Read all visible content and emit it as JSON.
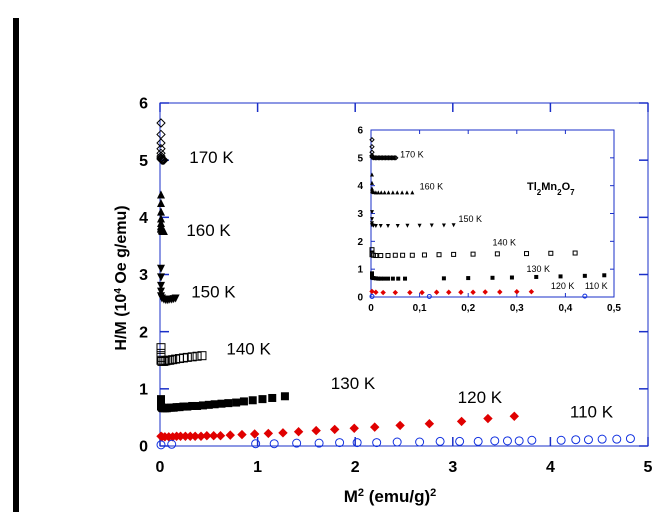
{
  "chart_data": {
    "type": "scatter",
    "main": {
      "xlabel_base": "M",
      "xlabel_sup": "2",
      "xlabel_rest": " (emu/g)",
      "xlabel_sup2": "2",
      "ylabel_a": "H/M (10",
      "ylabel_sup": "4",
      "ylabel_b": " Oe g/emu)",
      "xlim": [
        0,
        5
      ],
      "ylim": [
        0,
        6
      ],
      "xticks": [
        "0",
        "1",
        "2",
        "3",
        "4",
        "5"
      ],
      "yticks": [
        "0",
        "1",
        "2",
        "3",
        "4",
        "5",
        "6"
      ],
      "annotations": [
        {
          "text": "170 K",
          "x": 0.3,
          "y": 4.95
        },
        {
          "text": "160 K",
          "x": 0.27,
          "y": 3.67
        },
        {
          "text": "150 K",
          "x": 0.32,
          "y": 2.6
        },
        {
          "text": "140 K",
          "x": 0.68,
          "y": 1.6
        },
        {
          "text": "130 K",
          "x": 1.75,
          "y": 1.0
        },
        {
          "text": "120 K",
          "x": 3.05,
          "y": 0.75
        },
        {
          "text": "110 K",
          "x": 4.2,
          "y": 0.5
        }
      ],
      "series": [
        {
          "temp": "170 K",
          "marker": "diamond-open",
          "color": "#000000",
          "x": [
            0.0,
            0.0,
            0.0,
            0.0,
            0.0,
            0.01,
            0.01,
            0.01,
            0.02,
            0.02,
            0.03,
            0.03,
            0.04
          ],
          "y": [
            5.65,
            5.45,
            5.3,
            5.2,
            5.12,
            5.07,
            5.04,
            5.02,
            5.01,
            5.0,
            5.0,
            5.0,
            5.0
          ]
        },
        {
          "temp": "160 K",
          "marker": "triangle-up",
          "color": "#000000",
          "x": [
            0.0,
            0.0,
            0.0,
            0.0,
            0.0,
            0.01,
            0.01,
            0.01,
            0.02,
            0.02,
            0.03,
            0.04
          ],
          "y": [
            4.4,
            4.25,
            4.1,
            3.98,
            3.9,
            3.85,
            3.82,
            3.8,
            3.78,
            3.77,
            3.76,
            3.76
          ]
        },
        {
          "temp": "150 K",
          "marker": "triangle-down",
          "color": "#000000",
          "x": [
            0.0,
            0.0,
            0.0,
            0.0,
            0.01,
            0.02,
            0.04,
            0.06,
            0.08,
            0.1,
            0.12,
            0.14,
            0.16
          ],
          "y": [
            3.1,
            2.95,
            2.8,
            2.7,
            2.62,
            2.58,
            2.56,
            2.55,
            2.55,
            2.56,
            2.56,
            2.57,
            2.58
          ]
        },
        {
          "temp": "140 K",
          "marker": "square-open",
          "color": "#000000",
          "x": [
            0.0,
            0.0,
            0.0,
            0.01,
            0.02,
            0.04,
            0.06,
            0.08,
            0.1,
            0.13,
            0.16,
            0.2,
            0.24,
            0.28,
            0.33,
            0.38,
            0.43
          ],
          "y": [
            1.72,
            1.62,
            1.55,
            1.5,
            1.48,
            1.48,
            1.49,
            1.5,
            1.5,
            1.51,
            1.52,
            1.53,
            1.54,
            1.55,
            1.56,
            1.57,
            1.58
          ]
        },
        {
          "temp": "130 K",
          "marker": "square-filled",
          "color": "#000000",
          "x": [
            0.0,
            0.0,
            0.01,
            0.02,
            0.03,
            0.05,
            0.07,
            0.09,
            0.11,
            0.14,
            0.17,
            0.2,
            0.24,
            0.28,
            0.33,
            0.38,
            0.44,
            0.5,
            0.56,
            0.63,
            0.7,
            0.78,
            0.86,
            0.95,
            1.05,
            1.15,
            1.28
          ],
          "y": [
            0.82,
            0.74,
            0.69,
            0.67,
            0.66,
            0.66,
            0.66,
            0.67,
            0.67,
            0.67,
            0.68,
            0.68,
            0.69,
            0.69,
            0.7,
            0.7,
            0.71,
            0.72,
            0.73,
            0.74,
            0.75,
            0.76,
            0.78,
            0.8,
            0.82,
            0.84,
            0.87
          ]
        },
        {
          "temp": "120 K",
          "marker": "diamond-filled",
          "color": "#e00000",
          "x": [
            0.0,
            0.02,
            0.05,
            0.09,
            0.13,
            0.17,
            0.21,
            0.26,
            0.31,
            0.36,
            0.42,
            0.48,
            0.55,
            0.62,
            0.72,
            0.84,
            0.97,
            1.11,
            1.26,
            1.42,
            1.6,
            1.79,
            1.99,
            2.2,
            2.46,
            2.76,
            3.09,
            3.36,
            3.63
          ],
          "y": [
            0.17,
            0.16,
            0.16,
            0.16,
            0.16,
            0.17,
            0.17,
            0.17,
            0.17,
            0.17,
            0.17,
            0.18,
            0.18,
            0.18,
            0.19,
            0.2,
            0.21,
            0.22,
            0.23,
            0.25,
            0.27,
            0.29,
            0.31,
            0.33,
            0.36,
            0.39,
            0.43,
            0.48,
            0.52
          ]
        },
        {
          "temp": "110 K",
          "marker": "circle-open",
          "color": "#1030e0",
          "x": [
            0.0,
            0.12,
            0.98,
            1.17,
            1.4,
            1.63,
            1.84,
            2.02,
            2.22,
            2.43,
            2.66,
            2.87,
            3.07,
            3.26,
            3.43,
            3.56,
            3.68,
            3.81,
            4.11,
            4.26,
            4.39,
            4.53,
            4.68,
            4.82
          ],
          "y": [
            0.02,
            0.03,
            0.04,
            0.04,
            0.05,
            0.05,
            0.06,
            0.06,
            0.06,
            0.07,
            0.07,
            0.08,
            0.08,
            0.08,
            0.09,
            0.09,
            0.09,
            0.1,
            0.1,
            0.11,
            0.11,
            0.12,
            0.12,
            0.13
          ]
        }
      ]
    },
    "inset": {
      "title_base": "Tl",
      "title_sub1": "2",
      "title_mid": "Mn",
      "title_sub2": "2",
      "title_end": "O",
      "title_sub3": "7",
      "xlim": [
        0,
        0.5
      ],
      "ylim": [
        0,
        6
      ],
      "xticks": [
        "0",
        "0,1",
        "0,2",
        "0,3",
        "0,4",
        "0,5"
      ],
      "yticks": [
        "0",
        "1",
        "2",
        "3",
        "4",
        "5",
        "6"
      ],
      "annotations": [
        {
          "text": "170 K",
          "x": 0.06,
          "y": 5.02
        },
        {
          "text": "160 K",
          "x": 0.1,
          "y": 3.87
        },
        {
          "text": "150 K",
          "x": 0.18,
          "y": 2.7
        },
        {
          "text": "140 K",
          "x": 0.25,
          "y": 1.85
        },
        {
          "text": "130 K",
          "x": 0.32,
          "y": 0.9
        },
        {
          "text": "120 K",
          "x": 0.37,
          "y": 0.28
        },
        {
          "text": "110 K",
          "x": 0.44,
          "y": 0.28
        }
      ],
      "series": [
        {
          "temp": "170 K",
          "marker": "diamond-open",
          "color": "#000000",
          "x": [
            0.0,
            0.0,
            0.0,
            0.001,
            0.002,
            0.004,
            0.006,
            0.009,
            0.012,
            0.015,
            0.018,
            0.021,
            0.024,
            0.027,
            0.03,
            0.033,
            0.036,
            0.039,
            0.042,
            0.045,
            0.048,
            0.051
          ],
          "y": [
            5.65,
            5.4,
            5.2,
            5.08,
            5.03,
            5.01,
            5.0,
            5.0,
            5.0,
            5.0,
            5.0,
            5.0,
            5.0,
            5.0,
            5.0,
            5.0,
            5.0,
            5.0,
            5.0,
            5.0,
            5.0,
            5.0
          ]
        },
        {
          "temp": "160 K",
          "marker": "triangle-up",
          "color": "#000000",
          "x": [
            0.0,
            0.0,
            0.0,
            0.001,
            0.003,
            0.006,
            0.01,
            0.015,
            0.021,
            0.028,
            0.036,
            0.045,
            0.054,
            0.064,
            0.074,
            0.085
          ],
          "y": [
            4.4,
            4.1,
            3.9,
            3.82,
            3.78,
            3.77,
            3.76,
            3.76,
            3.76,
            3.76,
            3.76,
            3.76,
            3.76,
            3.76,
            3.76,
            3.76
          ]
        },
        {
          "temp": "150 K",
          "marker": "triangle-down",
          "color": "#000000",
          "x": [
            0.0,
            0.0,
            0.0,
            0.002,
            0.005,
            0.01,
            0.02,
            0.035,
            0.055,
            0.075,
            0.1,
            0.125,
            0.15,
            0.17
          ],
          "y": [
            3.05,
            2.8,
            2.65,
            2.58,
            2.56,
            2.55,
            2.55,
            2.55,
            2.55,
            2.56,
            2.56,
            2.57,
            2.57,
            2.58
          ]
        },
        {
          "temp": "140 K",
          "marker": "square-open",
          "color": "#000000",
          "x": [
            0.0,
            0.0,
            0.002,
            0.005,
            0.01,
            0.02,
            0.035,
            0.05,
            0.065,
            0.085,
            0.11,
            0.14,
            0.17,
            0.21,
            0.26,
            0.32,
            0.37,
            0.42
          ],
          "y": [
            1.7,
            1.58,
            1.52,
            1.5,
            1.49,
            1.49,
            1.49,
            1.5,
            1.5,
            1.5,
            1.51,
            1.52,
            1.53,
            1.54,
            1.55,
            1.56,
            1.57,
            1.58
          ]
        },
        {
          "temp": "130 K",
          "marker": "square-filled",
          "color": "#000000",
          "x": [
            0.0,
            0.0,
            0.002,
            0.005,
            0.01,
            0.015,
            0.02,
            0.027,
            0.035,
            0.045,
            0.056,
            0.07,
            0.15,
            0.2,
            0.25,
            0.29,
            0.34,
            0.39,
            0.44,
            0.48
          ],
          "y": [
            0.85,
            0.75,
            0.7,
            0.68,
            0.67,
            0.66,
            0.66,
            0.66,
            0.66,
            0.66,
            0.66,
            0.66,
            0.67,
            0.68,
            0.69,
            0.7,
            0.72,
            0.74,
            0.76,
            0.78
          ]
        },
        {
          "temp": "120 K",
          "marker": "diamond-filled",
          "color": "#e00000",
          "x": [
            0.0,
            0.01,
            0.025,
            0.05,
            0.08,
            0.105,
            0.135,
            0.16,
            0.185,
            0.21,
            0.235,
            0.265,
            0.3,
            0.33
          ],
          "y": [
            0.2,
            0.17,
            0.16,
            0.16,
            0.16,
            0.16,
            0.17,
            0.17,
            0.17,
            0.17,
            0.18,
            0.18,
            0.19,
            0.19
          ]
        },
        {
          "temp": "110 K",
          "marker": "circle-open",
          "color": "#1030e0",
          "x": [
            0.0,
            0.12,
            0.44
          ],
          "y": [
            0.02,
            0.02,
            0.03
          ]
        }
      ]
    }
  }
}
